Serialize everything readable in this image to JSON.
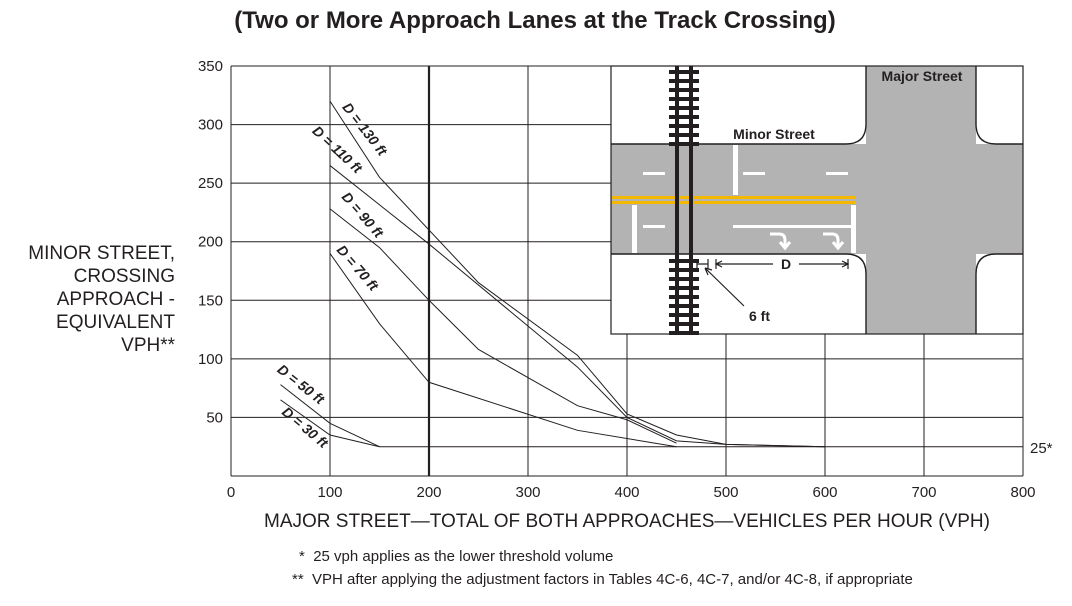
{
  "chart_data": {
    "type": "line",
    "title": "(Two or More Approach Lanes at the Track Crossing)",
    "xlabel": "MAJOR STREET—TOTAL OF BOTH APPROACHES—VEHICLES PER HOUR (VPH)",
    "ylabel_lines": [
      "MINOR STREET,",
      "CROSSING",
      "APPROACH -",
      "EQUIVALENT",
      "VPH**"
    ],
    "xlim": [
      0,
      800
    ],
    "ylim": [
      0,
      350
    ],
    "x_ticks": [
      0,
      100,
      200,
      300,
      400,
      500,
      600,
      700,
      800
    ],
    "y_ticks": [
      50,
      100,
      150,
      200,
      250,
      300,
      350
    ],
    "grid": true,
    "threshold": {
      "value": 25,
      "label": "25*"
    },
    "series": [
      {
        "name": "D = 130 ft",
        "points": [
          [
            100,
            320
          ],
          [
            150,
            255
          ],
          [
            250,
            165
          ],
          [
            350,
            103
          ],
          [
            400,
            53
          ],
          [
            450,
            35
          ],
          [
            500,
            27
          ],
          [
            600,
            25
          ]
        ]
      },
      {
        "name": "D = 110 ft",
        "points": [
          [
            100,
            265
          ],
          [
            200,
            198
          ],
          [
            350,
            93
          ],
          [
            400,
            50
          ],
          [
            450,
            30
          ],
          [
            500,
            27
          ],
          [
            600,
            25
          ]
        ]
      },
      {
        "name": "D = 90 ft",
        "points": [
          [
            100,
            228
          ],
          [
            150,
            195
          ],
          [
            200,
            150
          ],
          [
            250,
            108
          ],
          [
            350,
            60
          ],
          [
            400,
            48
          ],
          [
            450,
            28
          ]
        ]
      },
      {
        "name": "D = 70 ft",
        "points": [
          [
            100,
            190
          ],
          [
            150,
            130
          ],
          [
            200,
            80
          ],
          [
            350,
            39
          ],
          [
            450,
            25
          ]
        ]
      },
      {
        "name": "D = 50 ft",
        "points": [
          [
            50,
            78
          ],
          [
            100,
            45
          ],
          [
            150,
            25
          ]
        ]
      },
      {
        "name": "D = 30 ft",
        "points": [
          [
            50,
            65
          ],
          [
            100,
            35
          ],
          [
            150,
            25
          ]
        ]
      }
    ]
  },
  "inset": {
    "major_street_label": "Major Street",
    "minor_street_label": "Minor Street",
    "distance_label": "D",
    "offset_label": "6 ft"
  },
  "footnotes": {
    "note1_marker": "*",
    "note1_text": "25 vph applies as the lower threshold volume",
    "note2_marker": "**",
    "note2_text": "VPH after applying the adjustment factors in Tables 4C-6, 4C-7, and/or 4C-8, if appropriate"
  }
}
